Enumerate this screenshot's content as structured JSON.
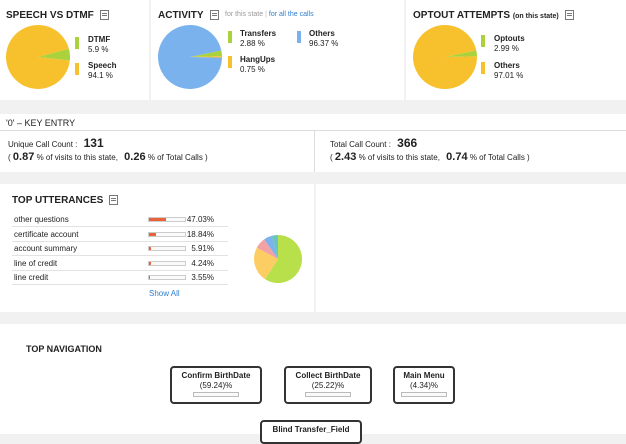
{
  "speech_vs_dtmf": {
    "title": "SPEECH VS DTMF",
    "items": [
      {
        "label": "DTMF",
        "value": "5.9 %",
        "color": "#a9d23d",
        "fraction": 0.059
      },
      {
        "label": "Speech",
        "value": "94.1 %",
        "color": "#f7c02d",
        "fraction": 0.941
      }
    ]
  },
  "activity": {
    "title": "ACTIVITY",
    "filter_state": "for this state",
    "filter_separator": "|",
    "filter_all": "for all the calls",
    "items": [
      {
        "label": "Transfers",
        "value": "2.88 %",
        "color": "#a9d23d",
        "fraction": 0.0288
      },
      {
        "label": "HangUps",
        "value": "0.75 %",
        "color": "#f7c02d",
        "fraction": 0.0075
      },
      {
        "label": "Others",
        "value": "96.37 %",
        "color": "#7ab2ee",
        "fraction": 0.9637
      }
    ]
  },
  "optout": {
    "title": "OPTOUT ATTEMPTS",
    "subtitle": "(on this state)",
    "items": [
      {
        "label": "Optouts",
        "value": "2.99 %",
        "color": "#a9d23d",
        "fraction": 0.0299
      },
      {
        "label": "Others",
        "value": "97.01 %",
        "color": "#f7c02d",
        "fraction": 0.9701
      }
    ]
  },
  "key_entry": {
    "title": "'0' – KEY ENTRY",
    "unique_label": "Unique Call Count :",
    "unique_count": "131",
    "unique_pct_visits": "0.87",
    "unique_pct_total": "0.26",
    "total_label": "Total Call Count :",
    "total_count": "366",
    "total_pct_visits": "2.43",
    "total_pct_total": "0.74",
    "open_paren": "(",
    "visits_text": "% of visits to this state,",
    "total_text": "% of Total Calls )"
  },
  "top_utterances": {
    "title": "TOP UTTERANCES",
    "rows": [
      {
        "label": "other questions",
        "pct": "47.03%",
        "fraction": 0.4703
      },
      {
        "label": "certificate account",
        "pct": "18.84%",
        "fraction": 0.1884
      },
      {
        "label": "account summary",
        "pct": "5.91%",
        "fraction": 0.0591
      },
      {
        "label": "line of credit",
        "pct": "4.24%",
        "fraction": 0.0424
      },
      {
        "label": "line credit",
        "pct": "3.55%",
        "fraction": 0.0355
      }
    ],
    "show_all": "Show All",
    "pie": [
      {
        "fraction": 0.4703,
        "color": "#b8e04a"
      },
      {
        "fraction": 0.1884,
        "color": "#fccd63"
      },
      {
        "fraction": 0.0591,
        "color": "#f2a2a2"
      },
      {
        "fraction": 0.0424,
        "color": "#7ab2ee"
      },
      {
        "fraction": 0.0355,
        "color": "#6cc3c3"
      }
    ]
  },
  "top_navigation": {
    "title": "TOP NAVIGATION",
    "items": [
      {
        "label": "Confirm BirthDate",
        "pct": "(59.24)%",
        "fraction": 0.5924
      },
      {
        "label": "Collect BirthDate",
        "pct": "(25.22)%",
        "fraction": 0.2522
      },
      {
        "label": "Main Menu",
        "pct": "(4.34)%",
        "fraction": 0.0434
      },
      {
        "label": "Blind Transfer_Field",
        "pct": "",
        "fraction": 0
      }
    ]
  }
}
